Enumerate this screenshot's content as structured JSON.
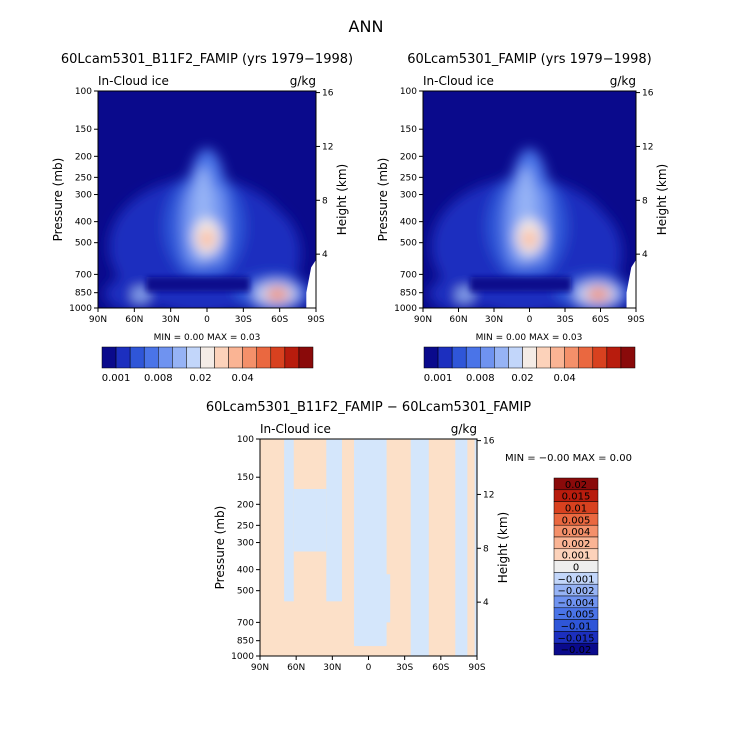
{
  "figure_title": "ANN",
  "chart_data": [
    {
      "type": "heatmap",
      "title": "60Lcam5301_B11F2_FAMIP (yrs 1979−1998)",
      "variable_label": "In-Cloud ice",
      "units": "g/kg",
      "xlabel": "",
      "ylabel": "Pressure (mb)",
      "ylabel_right": "Height (km)",
      "x_ticks": [
        "90N",
        "60N",
        "30N",
        "0",
        "30S",
        "60S",
        "90S"
      ],
      "x_range": [
        90,
        -90
      ],
      "y_ticks": [
        "100",
        "150",
        "200",
        "250",
        "300",
        "400",
        "500",
        "700",
        "850",
        "1000"
      ],
      "y_range": [
        100,
        1000
      ],
      "y_scale": "log",
      "height_ticks": [
        "4",
        "8",
        "12",
        "16"
      ],
      "stats": "MIN =    0.00   MAX =    0.03",
      "colorbar_labels": [
        "0.001",
        "0.008",
        "0.02",
        "0.04"
      ],
      "features": [
        {
          "lat": 0,
          "p": 480,
          "value": 0.03
        },
        {
          "lat": -60,
          "p": 860,
          "value": 0.03
        },
        {
          "lat": 55,
          "p": 860,
          "value": 0.01
        }
      ]
    },
    {
      "type": "heatmap",
      "title": "60Lcam5301_FAMIP (yrs 1979−1998)",
      "variable_label": "In-Cloud ice",
      "units": "g/kg",
      "xlabel": "",
      "ylabel": "Pressure (mb)",
      "ylabel_right": "Height (km)",
      "x_ticks": [
        "90N",
        "60N",
        "30N",
        "0",
        "30S",
        "60S",
        "90S"
      ],
      "x_range": [
        90,
        -90
      ],
      "y_ticks": [
        "100",
        "150",
        "200",
        "250",
        "300",
        "400",
        "500",
        "700",
        "850",
        "1000"
      ],
      "y_range": [
        100,
        1000
      ],
      "y_scale": "log",
      "height_ticks": [
        "4",
        "8",
        "12",
        "16"
      ],
      "stats": "MIN =    0.00   MAX =    0.03",
      "colorbar_labels": [
        "0.001",
        "0.008",
        "0.02",
        "0.04"
      ],
      "features": [
        {
          "lat": 0,
          "p": 480,
          "value": 0.03
        },
        {
          "lat": -60,
          "p": 860,
          "value": 0.03
        },
        {
          "lat": 55,
          "p": 860,
          "value": 0.01
        }
      ]
    },
    {
      "type": "heatmap",
      "title": "60Lcam5301_B11F2_FAMIP − 60Lcam5301_FAMIP",
      "variable_label": "In-Cloud ice",
      "units": "g/kg",
      "xlabel": "",
      "ylabel": "Pressure (mb)",
      "ylabel_right": "Height (km)",
      "x_ticks": [
        "90N",
        "60N",
        "30N",
        "0",
        "30S",
        "60S",
        "90S"
      ],
      "x_range": [
        90,
        -90
      ],
      "y_ticks": [
        "100",
        "150",
        "200",
        "250",
        "300",
        "400",
        "500",
        "700",
        "850",
        "1000"
      ],
      "y_range": [
        100,
        1000
      ],
      "y_scale": "log",
      "height_ticks": [
        "4",
        "8",
        "12",
        "16"
      ],
      "stats": "MIN =   −0.00   MAX =    0.00",
      "colorbar_labels": [
        "0.02",
        "0.015",
        "0.01",
        "0.005",
        "0.004",
        "0.002",
        "0.001",
        "0",
        "−0.001",
        "−0.002",
        "−0.004",
        "−0.005",
        "−0.01",
        "−0.015",
        "−0.02"
      ],
      "values_shown": [
        -0.001,
        0.001
      ]
    }
  ],
  "palettes": {
    "sequential": [
      "#0a0a8c",
      "#1c2fbf",
      "#2f56d8",
      "#4a74e8",
      "#6f93f0",
      "#96b3f5",
      "#c2d6fa",
      "#f4ece6",
      "#fcd2ba",
      "#fab494",
      "#f4906a",
      "#ea6840",
      "#d8411f",
      "#b81c0d",
      "#8a0a0a"
    ],
    "diverging": [
      "#8a0a0a",
      "#b81c0d",
      "#d8411f",
      "#ea6840",
      "#f4906a",
      "#fab494",
      "#fcd2ba",
      "#eeeeee",
      "#c2d6fa",
      "#96b3f5",
      "#6f93f0",
      "#4a74e8",
      "#2f56d8",
      "#1c2fbf",
      "#0a0a8c"
    ],
    "background": "#0a0a8c",
    "diff_positive": "#fce0c8",
    "diff_negative": "#d4e6fb"
  }
}
